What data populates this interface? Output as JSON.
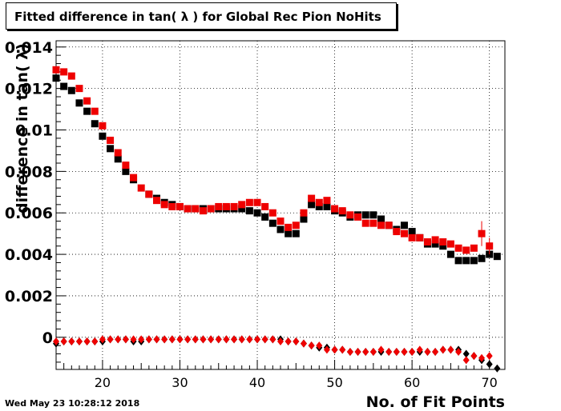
{
  "title": "Fitted difference in tan( λ ) for Global Rec Pion NoHits",
  "timestamp": "Wed May 23 10:28:12 2018",
  "chart_data": {
    "type": "scatter",
    "title": "Fitted difference in tan( λ ) for Global Rec Pion NoHits",
    "xlabel": "No. of Fit Points",
    "ylabel": "difference in tan( λ)",
    "xlim": [
      14,
      72
    ],
    "ylim": [
      -0.00155,
      0.0143
    ],
    "xticks": [
      20,
      30,
      40,
      50,
      60,
      70
    ],
    "yticks": [
      0,
      0.002,
      0.004,
      0.006,
      0.008,
      0.01,
      0.012,
      0.014
    ],
    "ytick_labels": [
      "0",
      "0.002",
      "0.004",
      "0.006",
      "0.008",
      "0.01",
      "0.012",
      "0.014"
    ],
    "grid": true,
    "x": [
      14,
      15,
      16,
      17,
      18,
      19,
      20,
      21,
      22,
      23,
      24,
      25,
      26,
      27,
      28,
      29,
      30,
      31,
      32,
      33,
      34,
      35,
      36,
      37,
      38,
      39,
      40,
      41,
      42,
      43,
      44,
      45,
      46,
      47,
      48,
      49,
      50,
      51,
      52,
      53,
      54,
      55,
      56,
      57,
      58,
      59,
      60,
      61,
      62,
      63,
      64,
      65,
      66,
      67,
      68,
      69,
      70,
      71
    ],
    "series": [
      {
        "marker": "square",
        "color": "#000000",
        "values": [
          0.0125,
          0.0121,
          0.0119,
          0.0113,
          0.0109,
          0.0103,
          0.0097,
          0.0091,
          0.0086,
          0.008,
          0.0076,
          null,
          0.0069,
          0.0067,
          0.0065,
          0.0064,
          0.0063,
          0.0062,
          0.0062,
          0.0062,
          0.0062,
          0.0062,
          0.0062,
          0.0062,
          0.0062,
          0.0061,
          0.006,
          0.0058,
          0.0055,
          0.0052,
          0.005,
          0.005,
          0.0057,
          0.0064,
          0.0063,
          0.0063,
          0.0061,
          0.006,
          0.0058,
          0.0059,
          0.0059,
          0.0059,
          0.0057,
          0.0054,
          0.0052,
          0.0054,
          0.0051,
          0.0048,
          0.0045,
          0.0045,
          0.0044,
          0.004,
          0.0037,
          0.0037,
          0.0037,
          0.0038,
          0.004,
          0.0039
        ]
      },
      {
        "marker": "square",
        "color": "#ee0000",
        "values": [
          0.0129,
          0.0128,
          0.0126,
          0.012,
          0.0114,
          0.0109,
          0.0102,
          0.0095,
          0.0089,
          0.0083,
          0.0077,
          0.0072,
          0.0069,
          0.0066,
          0.0064,
          0.0063,
          0.0063,
          0.0062,
          0.0062,
          0.0061,
          0.0062,
          0.0063,
          0.0063,
          0.0063,
          0.0064,
          0.0065,
          0.0065,
          0.0063,
          0.006,
          0.0056,
          0.0053,
          0.0054,
          0.006,
          0.0067,
          0.0065,
          0.0066,
          0.0062,
          0.0061,
          0.0059,
          0.0058,
          0.0055,
          0.0055,
          0.0054,
          0.0054,
          0.0051,
          0.005,
          0.0048,
          0.0048,
          0.0046,
          0.0047,
          0.0046,
          0.0045,
          0.0043,
          0.0042,
          0.0043,
          0.005,
          0.0044,
          null
        ],
        "errors": [
          0,
          0,
          0,
          0,
          0,
          0,
          0,
          0,
          0,
          0,
          0,
          0,
          0,
          0,
          0,
          0,
          0,
          0,
          0,
          0,
          0,
          0,
          0,
          0,
          0,
          0,
          0,
          0,
          0,
          0,
          0,
          0,
          0,
          0,
          0,
          0,
          0,
          0,
          0,
          0,
          0,
          0,
          0,
          0,
          0,
          0,
          0,
          0,
          0,
          0,
          0,
          0,
          0,
          0,
          0,
          0.0006,
          0.0004,
          0
        ]
      },
      {
        "marker": "diamond",
        "color": "#000000",
        "values": [
          -0.0003,
          -0.0002,
          -0.0002,
          -0.0002,
          -0.0002,
          -0.0002,
          -0.0002,
          -0.0001,
          -0.0001,
          -0.0001,
          -0.0002,
          -0.0002,
          -0.0001,
          -0.0001,
          -0.0001,
          -0.0001,
          -0.0001,
          -0.0001,
          -0.0001,
          -0.0001,
          -0.0001,
          -0.0001,
          -0.0001,
          -0.0001,
          -0.0001,
          -0.0001,
          -0.0001,
          -0.0001,
          -0.0001,
          -0.0001,
          -0.0002,
          -0.0002,
          -0.0003,
          -0.0004,
          -0.0005,
          -0.0005,
          -0.0006,
          -0.0006,
          -0.0007,
          -0.0007,
          -0.0007,
          -0.0007,
          -0.0007,
          -0.0007,
          -0.0007,
          -0.0007,
          -0.0007,
          -0.0007,
          -0.0007,
          -0.0007,
          -0.0006,
          -0.0006,
          -0.0006,
          -0.0008,
          -0.0009,
          -0.0011,
          -0.0013,
          -0.0015
        ]
      },
      {
        "marker": "diamond",
        "color": "#ee0000",
        "values": [
          -0.0002,
          -0.0002,
          -0.0002,
          -0.0002,
          -0.0002,
          -0.0002,
          -0.0001,
          -0.0001,
          -0.0001,
          -0.0001,
          -0.0001,
          -0.0001,
          -0.0001,
          -0.0001,
          -0.0001,
          -0.0001,
          -0.0001,
          -0.0001,
          -0.0001,
          -0.0001,
          -0.0001,
          -0.0001,
          -0.0001,
          -0.0001,
          -0.0001,
          -0.0001,
          -0.0001,
          -0.0001,
          -0.0001,
          -0.0002,
          -0.0002,
          -0.0002,
          -0.0003,
          -0.0004,
          -0.0004,
          -0.0006,
          -0.0006,
          -0.0006,
          -0.0007,
          -0.0007,
          -0.0007,
          -0.0007,
          -0.0006,
          -0.0007,
          -0.0007,
          -0.0007,
          -0.0007,
          -0.0006,
          -0.0007,
          -0.0007,
          -0.0006,
          -0.0006,
          -0.0007,
          -0.0011,
          -0.0009,
          -0.001,
          -0.0009,
          null
        ]
      }
    ]
  }
}
